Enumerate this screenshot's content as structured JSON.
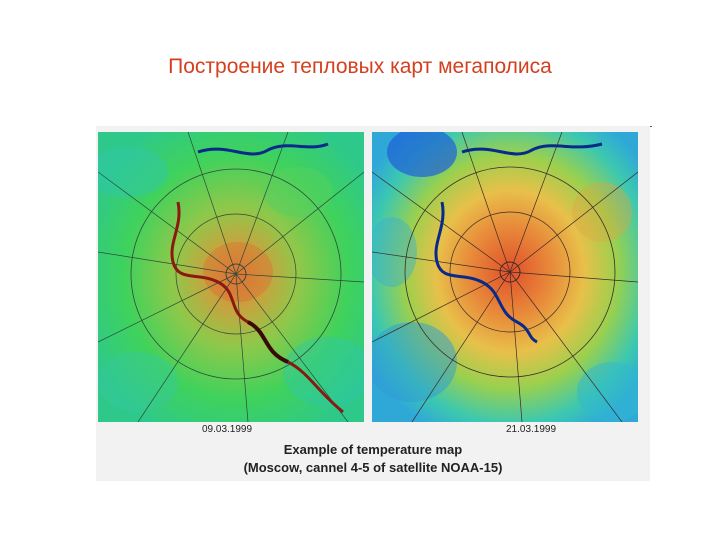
{
  "title": "Построение тепловых карт мегаполиса",
  "figure": {
    "maps": [
      {
        "date": "09.03.1999"
      },
      {
        "date": "21.03.1999"
      }
    ],
    "caption_line1": "Example of temperature map",
    "caption_line2": "(Moscow, cannel 4-5 of satellite NOAA-15)"
  },
  "colors": {
    "title": "#d4401e",
    "cold": "#1f5fd6",
    "cool": "#2fc8c8",
    "mild": "#3ad25a",
    "warm": "#e8b13a",
    "hot": "#e0502a",
    "river": "#0a2a8a"
  }
}
